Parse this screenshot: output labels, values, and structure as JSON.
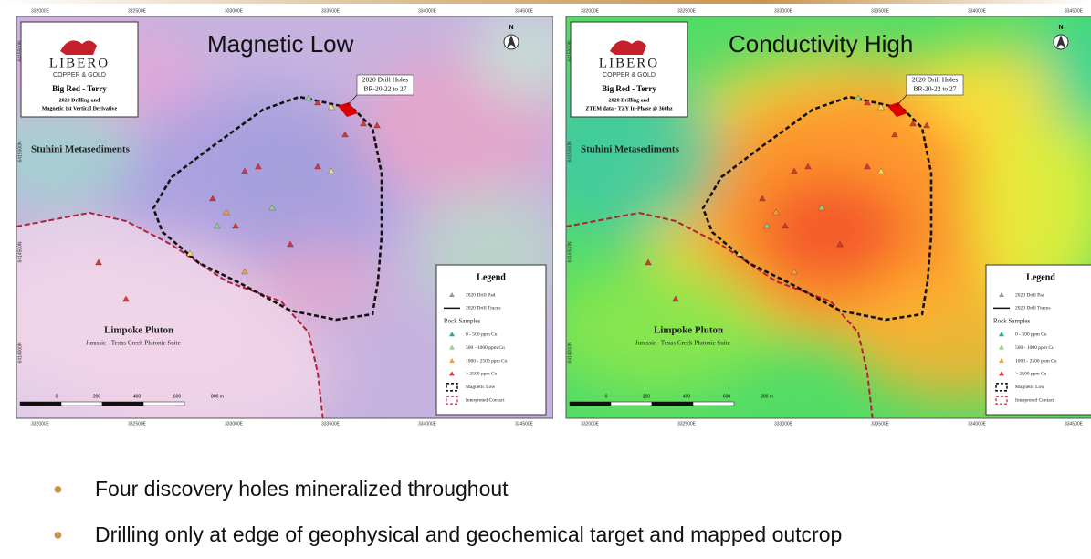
{
  "maps": [
    {
      "title": "Magnetic Low",
      "logo": "LIBERO",
      "logo_sub": "COPPER & GOLD",
      "project": "Big Red - Terry",
      "subtitle_1": "2020 Drilling and",
      "subtitle_2": "Magnetic 1st Vertical Derivative",
      "eastings": [
        "332000E",
        "332500E",
        "333000E",
        "333500E",
        "334000E",
        "334500E"
      ],
      "northings": [
        "6415500N",
        "6415000N",
        "6414500N",
        "6414000N"
      ],
      "labels": {
        "drill_holes_1": "2020 Drill Holes",
        "drill_holes_2": "BR-20-22 to 27",
        "north": "N",
        "unit_1": "Stuhini Metasediments",
        "unit_2": "Limpoke Pluton",
        "unit_2_sub": "Jurassic - Texas Creek Plutonic Suite"
      },
      "scale": [
        "0",
        "200",
        "400",
        "600",
        "800 m"
      ],
      "legend": {
        "title": "Legend",
        "items": [
          "2020 Drill Pad",
          "2020 Drill Traces",
          "Rock Samples",
          "0 - 500 ppm Cu",
          "500 - 1000 ppm Cu",
          "1000 - 2500 ppm Cu",
          "> 2500 ppm Cu",
          "Magnetic Low",
          "Interpreted Contact"
        ]
      }
    },
    {
      "title": "Conductivity High",
      "logo": "LIBERO",
      "logo_sub": "COPPER & GOLD",
      "project": "Big Red - Terry",
      "subtitle_1": "2020 Drilling and",
      "subtitle_2": "ZTEM data - TZY In-Phase @ 360hz",
      "eastings": [
        "332000E",
        "332500E",
        "333000E",
        "333500E",
        "334000E",
        "334500E"
      ],
      "northings": [
        "6415500N",
        "6415000N",
        "6414500N",
        "6414000N"
      ],
      "labels": {
        "drill_holes_1": "2020 Drill Holes",
        "drill_holes_2": "BR-20-22 to 27",
        "north": "N",
        "unit_1": "Stuhini Metasediments",
        "unit_2": "Limpoke Pluton",
        "unit_2_sub": "Jurassic - Texas Creek Plutonic Suite"
      },
      "scale": [
        "0",
        "200",
        "400",
        "600",
        "800 m"
      ],
      "legend": {
        "title": "Legend",
        "items": [
          "2020 Drill Pad",
          "2020 Drill Traces",
          "Rock Samples",
          "0 - 500 ppm Cu",
          "500 - 1000 ppm Cu",
          "1000 - 2500 ppm Cu",
          "> 2500 ppm Cu",
          "Magnetic Low",
          "Interpreted Contact"
        ]
      }
    }
  ],
  "bullets": [
    "Four discovery holes mineralized throughout",
    "Drilling only at edge of geophysical and geochemical target and mapped outcrop"
  ]
}
